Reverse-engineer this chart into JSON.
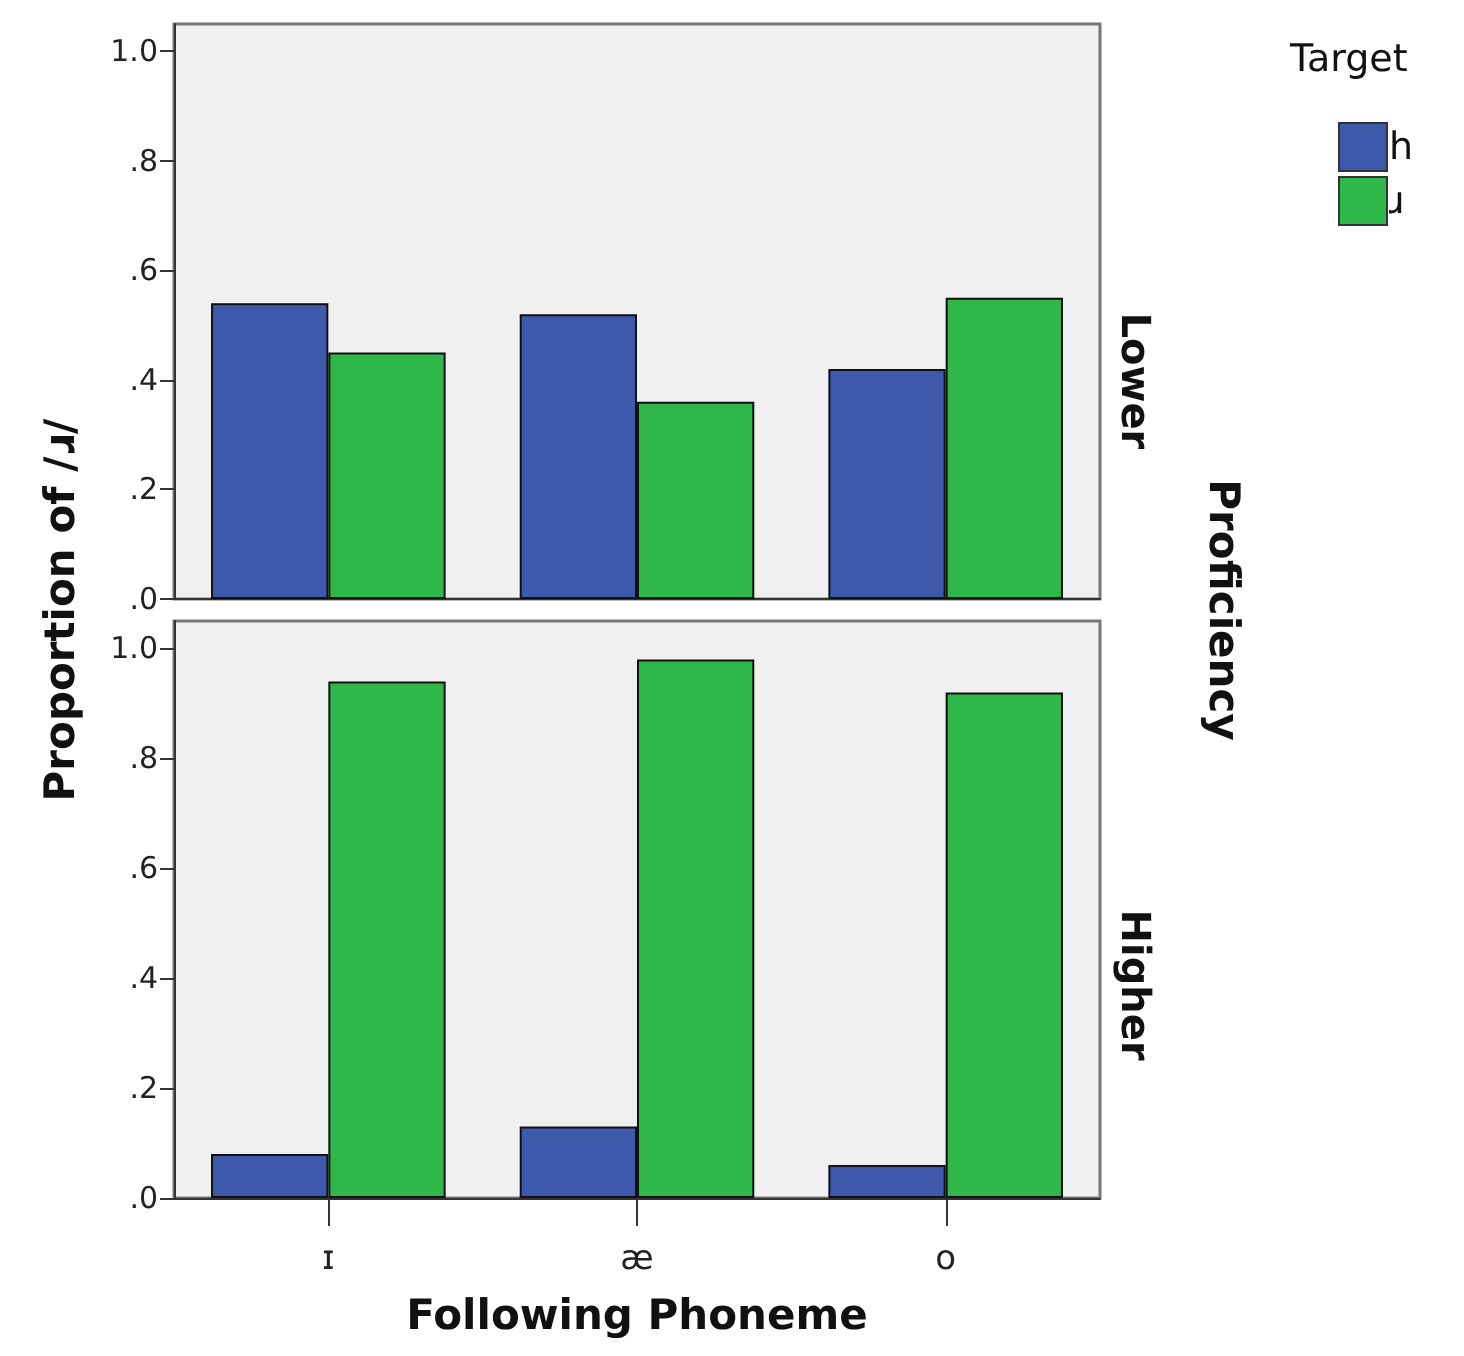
{
  "chart_data": [
    {
      "type": "bar",
      "title": "Lower",
      "ylabel": "Proportion of /ɹ/",
      "legend_title": "Target",
      "legend": "top right",
      "annotations": [
        "Proficiency"
      ],
      "categories": [
        null,
        null,
        null
      ],
      "tick_labels": "y",
      "ylim": [
        0,
        1.05
      ],
      "yticks": [
        {
          "value": 0,
          "label": ".0"
        },
        {
          "value": 0.2,
          "label": ".2"
        },
        {
          "value": 0.4,
          "label": ".4"
        },
        {
          "value": 0.6,
          "label": ".6"
        },
        {
          "value": 0.8,
          "label": ".8"
        },
        {
          "value": 1,
          "label": "1.0"
        }
      ],
      "series": [
        {
          "name": "h",
          "color": "#3e58ac",
          "values": [
            0.54,
            0.52,
            0.42
          ]
        },
        {
          "name": "ɹ",
          "color": "#2fb84a",
          "values": [
            0.45,
            0.36,
            0.55
          ]
        }
      ]
    },
    {
      "type": "bar",
      "title": "Higher",
      "xlabel": "Following Phoneme",
      "categories": [
        "ɪ",
        "æ",
        "o"
      ],
      "ylim": [
        0,
        1.05
      ],
      "yticks": [
        {
          "value": 0,
          "label": ".0"
        },
        {
          "value": 0.2,
          "label": ".2"
        },
        {
          "value": 0.4,
          "label": ".4"
        },
        {
          "value": 0.6,
          "label": ".6"
        },
        {
          "value": 0.8,
          "label": ".8"
        },
        {
          "value": 1,
          "label": "1.0"
        }
      ],
      "series": [
        {
          "color": "#3e58ac",
          "values": [
            0.08,
            0.13,
            0.06
          ]
        },
        {
          "color": "#2fb84a",
          "values": [
            0.94,
            0.98,
            0.92
          ]
        }
      ]
    }
  ]
}
